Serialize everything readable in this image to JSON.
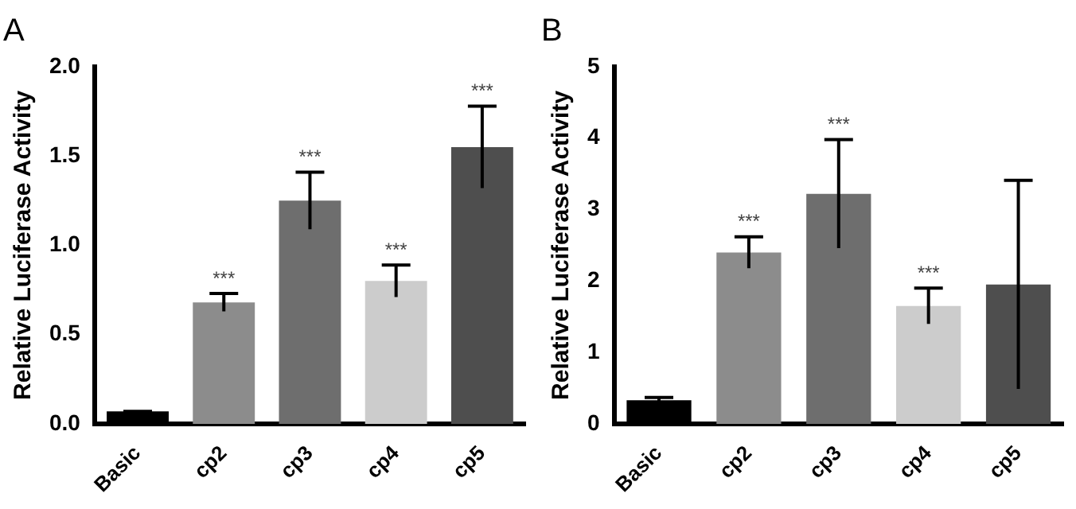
{
  "chart_data": [
    {
      "type": "bar",
      "title": "A",
      "ylabel": "Relative Luciferase Activity",
      "categories": [
        "Basic",
        "cp2",
        "cp3",
        "cp4",
        "cp5"
      ],
      "values": [
        0.07,
        0.68,
        1.25,
        0.8,
        1.55
      ],
      "colors": [
        "#000000",
        "#8c8c8c",
        "#6e6e6e",
        "#cccccc",
        "#4e4e4e"
      ],
      "errors": [
        0,
        0.05,
        0.16,
        0.09,
        0.23
      ],
      "ylim": [
        0,
        2
      ],
      "yticks": [
        {
          "value": 0,
          "label": "0.0"
        },
        {
          "value": 0.5,
          "label": "0.5"
        },
        {
          "value": 1,
          "label": "1.0"
        },
        {
          "value": 1.5,
          "label": "1.5"
        },
        {
          "value": 2,
          "label": "2.0"
        }
      ],
      "grid": false,
      "legend": false,
      "value_labels": [
        null,
        "***",
        "***",
        "***",
        "***"
      ]
    },
    {
      "type": "bar",
      "title": "B",
      "ylabel": "Relative Luciferase Activity",
      "categories": [
        "Basic",
        "cp2",
        "cp3",
        "cp4",
        "cp5"
      ],
      "values": [
        0.33,
        2.4,
        3.22,
        1.65,
        1.95
      ],
      "colors": [
        "#000000",
        "#8c8c8c",
        "#6e6e6e",
        "#cccccc",
        "#4e4e4e"
      ],
      "errors": [
        0.04,
        0.22,
        0.76,
        0.25,
        1.46
      ],
      "ylim": [
        0,
        5
      ],
      "yticks": [
        0,
        1,
        2,
        3,
        4,
        5
      ],
      "grid": false,
      "legend": false,
      "value_labels": [
        null,
        "***",
        "***",
        "***",
        null
      ]
    }
  ]
}
